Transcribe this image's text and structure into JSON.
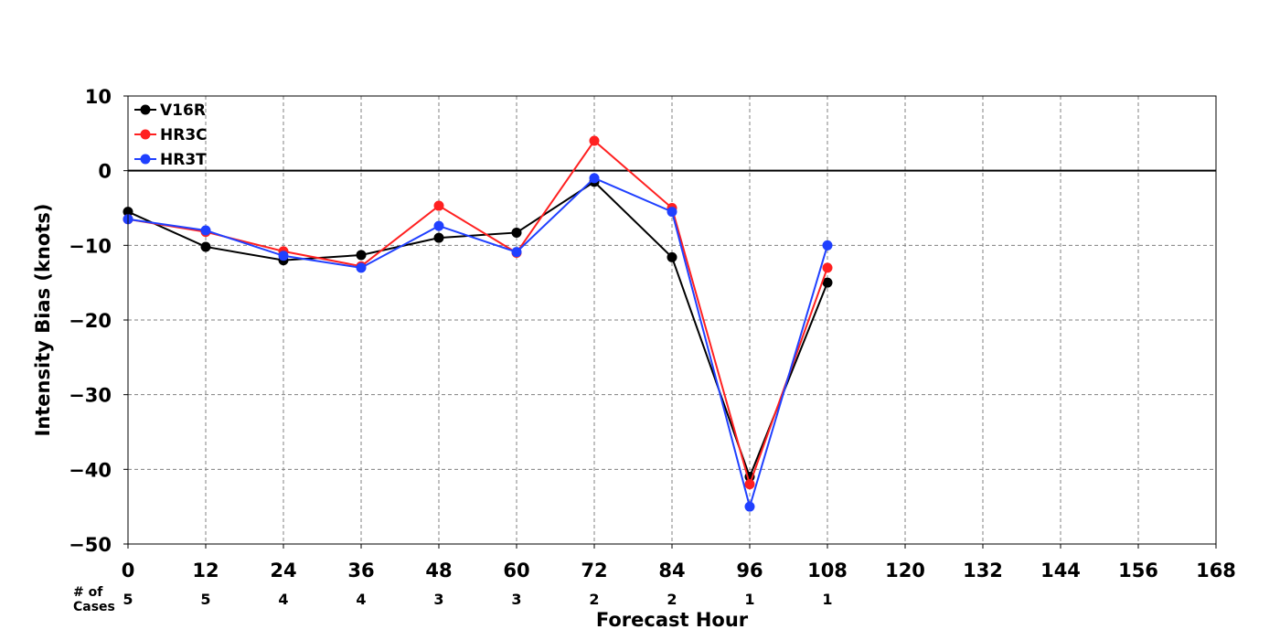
{
  "chart_data": {
    "type": "line",
    "xlabel": "Forecast Hour",
    "ylabel": "Intensity Bias (knots)",
    "xlim": [
      0,
      168
    ],
    "ylim": [
      -50,
      10
    ],
    "xticks": [
      0,
      12,
      24,
      36,
      48,
      60,
      72,
      84,
      96,
      108,
      120,
      132,
      144,
      156,
      168
    ],
    "yticks": [
      10,
      0,
      -10,
      -20,
      -30,
      -40,
      -50
    ],
    "ytick_labels": [
      "10",
      "0",
      "−10",
      "−20",
      "−30",
      "−40",
      "−50"
    ],
    "grid": true,
    "legend_position": "top-left",
    "x": [
      0,
      12,
      24,
      36,
      48,
      60,
      72,
      84,
      96,
      108
    ],
    "series": [
      {
        "name": "V16R",
        "color": "#000000",
        "values": [
          -5.5,
          -10.2,
          -12.0,
          -11.3,
          -9.0,
          -8.3,
          -1.5,
          -11.6,
          -41.0,
          -15.0
        ]
      },
      {
        "name": "HR3C",
        "color": "#ff2020",
        "values": [
          -6.5,
          -8.2,
          -10.8,
          -12.8,
          -4.7,
          -11.0,
          4.0,
          -5.0,
          -42.0,
          -13.0
        ]
      },
      {
        "name": "HR3T",
        "color": "#2040ff",
        "values": [
          -6.5,
          -8.0,
          -11.4,
          -13.0,
          -7.4,
          -10.9,
          -1.0,
          -5.5,
          -45.0,
          -10.0
        ]
      }
    ],
    "cases_label": [
      "# of",
      "Cases"
    ],
    "cases": [
      "5",
      "5",
      "4",
      "4",
      "3",
      "3",
      "2",
      "2",
      "1",
      "1"
    ]
  }
}
